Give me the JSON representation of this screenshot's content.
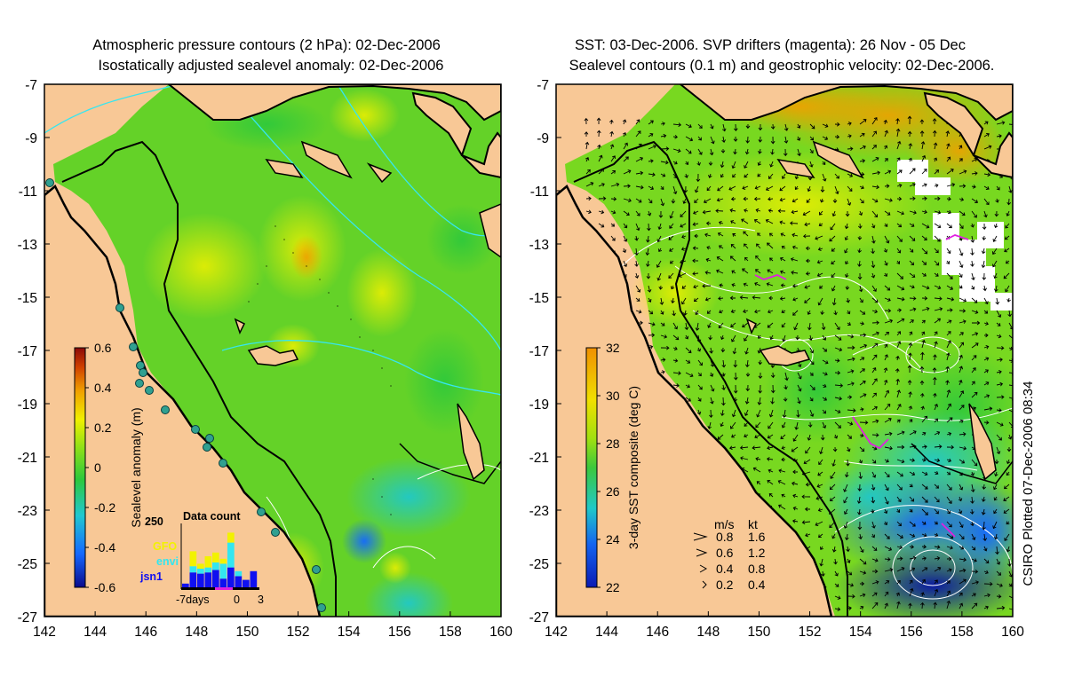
{
  "left_panel": {
    "title_line1": "Atmospheric pressure contours (2 hPa): 02-Dec-2006",
    "title_line2": "Isostatically adjusted sealevel anomaly: 02-Dec-2006",
    "colorbar_label": "Sealevel anomaly (m)",
    "colorbar_ticks": [
      "0.6",
      "0.4",
      "0.2",
      "0",
      "-0.2",
      "-0.4",
      "-0.6"
    ],
    "inset": {
      "title": "Data count",
      "ymax_label": "250",
      "legend": [
        {
          "name": "GFO",
          "color": "#f2f200"
        },
        {
          "name": "envi",
          "color": "#33e6f0"
        },
        {
          "name": "jsn1",
          "color": "#1010f0"
        }
      ],
      "x_labels": [
        "-7days",
        "0",
        "3"
      ],
      "bars": [
        {
          "day": -7,
          "jsn1": 15,
          "envi": 0,
          "gfo": 0
        },
        {
          "day": -6,
          "jsn1": 60,
          "envi": 25,
          "gfo": 60
        },
        {
          "day": -5,
          "jsn1": 55,
          "envi": 20,
          "gfo": 20
        },
        {
          "day": -4,
          "jsn1": 60,
          "envi": 20,
          "gfo": 45
        },
        {
          "day": -3,
          "jsn1": 70,
          "envi": 30,
          "gfo": 40
        },
        {
          "day": -2,
          "jsn1": 35,
          "envi": 60,
          "gfo": 20
        },
        {
          "day": -1,
          "jsn1": 80,
          "envi": 100,
          "gfo": 40
        },
        {
          "day": 0,
          "jsn1": 45,
          "envi": 20,
          "gfo": 0
        },
        {
          "day": 1,
          "jsn1": 30,
          "envi": 0,
          "gfo": 0
        },
        {
          "day": 2,
          "jsn1": 65,
          "envi": 0,
          "gfo": 0
        }
      ]
    }
  },
  "right_panel": {
    "title_line1": "SST: 03-Dec-2006. SVP drifters (magenta): 26 Nov - 05 Dec",
    "title_line2": "Sealevel contours (0.1 m) and geostrophic velocity: 02-Dec-2006.",
    "colorbar_label": "3-day SST composite (deg C)",
    "colorbar_ticks": [
      "32",
      "30",
      "28",
      "26",
      "24",
      "22"
    ],
    "velocity_legend": {
      "header_ms": "m/s",
      "header_kt": "kt",
      "rows": [
        {
          "ms": "0.8",
          "kt": "1.6"
        },
        {
          "ms": "0.6",
          "kt": "1.2"
        },
        {
          "ms": "0.4",
          "kt": "0.8"
        },
        {
          "ms": "0.2",
          "kt": "0.4"
        }
      ]
    }
  },
  "axes": {
    "x_ticks": [
      "142",
      "144",
      "146",
      "148",
      "150",
      "152",
      "154",
      "156",
      "158",
      "160"
    ],
    "y_ticks": [
      "-7",
      "-9",
      "-11",
      "-13",
      "-15",
      "-17",
      "-19",
      "-21",
      "-23",
      "-25",
      "-27"
    ],
    "xlim": [
      142,
      160
    ],
    "ylim": [
      -27,
      -7
    ]
  },
  "colors": {
    "land": "#f8c896",
    "coast": "#000000",
    "anomaly_ramp": [
      "#0a0a8c",
      "#1468ff",
      "#20c8d0",
      "#2cc83c",
      "#8ce018",
      "#f0f000",
      "#f0a000",
      "#d04000",
      "#8c0a0a"
    ],
    "sst_ramp": [
      "#0a0a8c",
      "#1468ff",
      "#20c8d0",
      "#2cc83c",
      "#8ce018",
      "#f0f000",
      "#f0a000",
      "#d04000",
      "#8c0a0a"
    ],
    "drifter": "#e020e0"
  },
  "credit": "CSIRO Plotted 07-Dec-2006 08:34"
}
